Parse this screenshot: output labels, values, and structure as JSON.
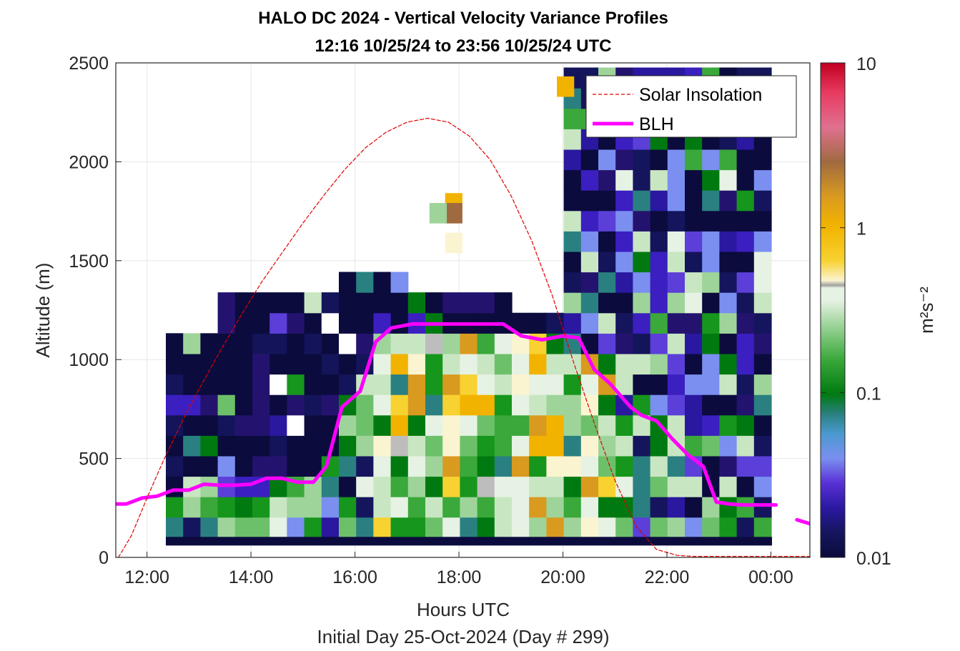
{
  "chart_data": {
    "type": "heatmap",
    "title": "HALO DC 2024 - Vertical Velocity Variance Profiles",
    "subtitle": "12:16 10/25/24 to 23:56 10/25/24  UTC",
    "xlabel": "Hours UTC",
    "xlabel2": "Initial Day 25-Oct-2024 (Day # 299)",
    "ylabel": "Altitude (m)",
    "xlim": [
      11.4,
      24.75
    ],
    "ylim": [
      0,
      2500
    ],
    "x_ticks": [
      "12:00",
      "14:00",
      "16:00",
      "18:00",
      "20:00",
      "22:00",
      "00:00"
    ],
    "y_ticks": [
      "0",
      "500",
      "1000",
      "1500",
      "2000",
      "2500"
    ],
    "colorbar": {
      "label": "m²s⁻²",
      "scale": "log",
      "range": [
        0.01,
        10
      ],
      "ticks": [
        "0.01",
        "0.1",
        "1",
        "10"
      ]
    },
    "legend": {
      "location": "top-right",
      "entries": [
        "Solar Insolation",
        "BLH"
      ]
    },
    "grid": true,
    "series": [
      {
        "name": "BLH",
        "color": "#ff00ff",
        "x_hours": [
          11.4,
          11.6,
          11.9,
          12.2,
          12.5,
          12.8,
          13.1,
          13.4,
          13.7,
          14.0,
          14.3,
          14.6,
          14.9,
          15.2,
          15.45,
          15.75,
          16.1,
          16.4,
          16.7,
          17.1,
          17.5,
          17.9,
          18.3,
          18.6,
          18.85,
          19.2,
          19.6,
          20.0,
          20.3,
          20.6,
          20.9,
          21.3,
          21.5,
          21.8,
          22.1,
          22.4,
          22.7,
          22.95,
          23.2,
          23.45,
          23.9,
          24.1
        ],
        "y_m": [
          270,
          270,
          300,
          310,
          340,
          340,
          370,
          365,
          365,
          370,
          400,
          400,
          380,
          380,
          460,
          760,
          840,
          1090,
          1160,
          1180,
          1180,
          1180,
          1180,
          1180,
          1180,
          1120,
          1100,
          1120,
          1110,
          950,
          880,
          760,
          720,
          690,
          600,
          520,
          460,
          280,
          270,
          265,
          265,
          265
        ]
      },
      {
        "name": "BLH",
        "color": "#ff00ff",
        "x_hours": [
          24.5,
          24.75
        ],
        "y_m": [
          190,
          170
        ]
      },
      {
        "name": "Solar Insolation",
        "color": "#e00000",
        "style": "dashed",
        "x_hours": [
          11.45,
          11.7,
          12.0,
          12.3,
          12.7,
          13.0,
          13.4,
          13.8,
          14.2,
          14.6,
          15.0,
          15.4,
          15.8,
          16.2,
          16.6,
          17.0,
          17.4,
          17.8,
          18.2,
          18.6,
          19.0,
          19.4,
          19.8,
          20.2,
          20.6,
          21.0,
          21.4,
          21.8,
          22.2,
          22.5,
          23.0,
          23.5,
          24.0,
          24.5,
          24.75
        ],
        "y_m": [
          0,
          110,
          300,
          480,
          700,
          850,
          1040,
          1220,
          1390,
          1540,
          1690,
          1830,
          1960,
          2070,
          2150,
          2200,
          2220,
          2200,
          2130,
          2010,
          1830,
          1600,
          1320,
          990,
          680,
          390,
          160,
          40,
          10,
          5,
          5,
          5,
          5,
          5,
          5
        ]
      }
    ]
  }
}
